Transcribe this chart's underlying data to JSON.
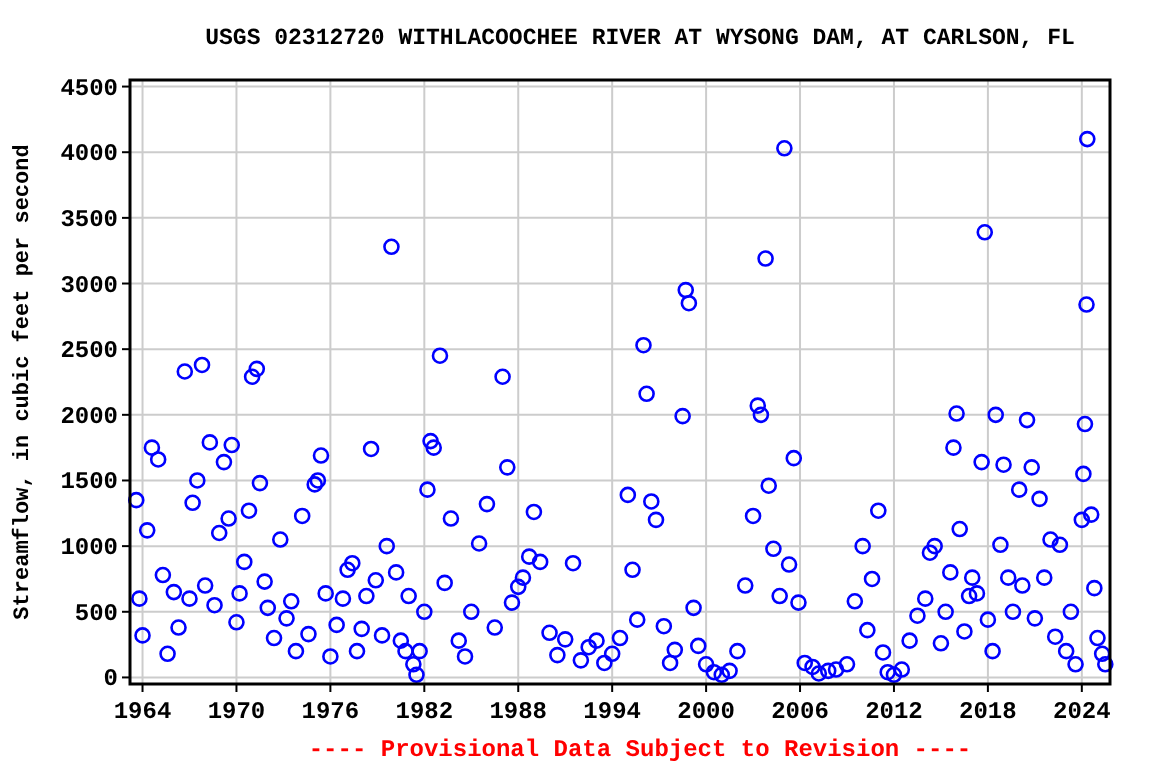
{
  "chart_data": {
    "type": "scatter",
    "title": "USGS 02312720 WITHLACOOCHEE RIVER AT WYSONG DAM, AT CARLSON, FL",
    "ylabel": "Streamflow, in cubic feet per second",
    "annotations": [
      "---- Provisional Data Subject to Revision ----"
    ],
    "xlim": [
      1963.2,
      2025.8
    ],
    "xticks": [
      1964,
      1970,
      1976,
      1982,
      1988,
      1994,
      2000,
      2006,
      2012,
      2018,
      2024
    ],
    "ylim": [
      -50,
      4550
    ],
    "yticks": [
      0,
      500,
      1000,
      1500,
      2000,
      2500,
      3000,
      3500,
      4000,
      4500
    ],
    "grid": true,
    "marker": "circle",
    "series": [
      {
        "color": "#0000ff",
        "x": [
          1963.6,
          1963.8,
          1964.0,
          1964.3,
          1964.6,
          1965.0,
          1965.3,
          1965.6,
          1966.0,
          1966.3,
          1966.7,
          1967.0,
          1967.2,
          1967.5,
          1967.8,
          1968.0,
          1968.3,
          1968.6,
          1968.9,
          1969.2,
          1969.5,
          1969.7,
          1970.0,
          1970.2,
          1970.5,
          1970.8,
          1971.0,
          1971.3,
          1971.5,
          1971.8,
          1972.0,
          1972.4,
          1972.8,
          1973.2,
          1973.5,
          1973.8,
          1974.2,
          1974.6,
          1975.0,
          1975.2,
          1975.4,
          1975.7,
          1976.0,
          1976.4,
          1976.8,
          1977.1,
          1977.4,
          1977.7,
          1978.0,
          1978.3,
          1978.6,
          1978.9,
          1979.3,
          1979.6,
          1979.9,
          1980.2,
          1980.5,
          1980.8,
          1981.0,
          1981.3,
          1981.5,
          1981.7,
          1982.0,
          1982.2,
          1982.4,
          1982.6,
          1983.0,
          1983.3,
          1983.7,
          1984.2,
          1984.6,
          1985.0,
          1985.5,
          1986.0,
          1986.5,
          1987.0,
          1987.3,
          1987.6,
          1988.0,
          1988.3,
          1988.7,
          1989.0,
          1989.4,
          1990.0,
          1990.5,
          1991.0,
          1991.5,
          1992.0,
          1992.5,
          1993.0,
          1993.5,
          1994.0,
          1994.5,
          1995.0,
          1995.3,
          1995.6,
          1996.0,
          1996.2,
          1996.5,
          1996.8,
          1997.3,
          1997.7,
          1998.0,
          1998.5,
          1998.7,
          1998.9,
          1999.2,
          1999.5,
          2000.0,
          2000.5,
          2001.0,
          2001.5,
          2002.0,
          2002.5,
          2003.0,
          2003.3,
          2003.5,
          2003.8,
          2004.0,
          2004.3,
          2004.7,
          2005.0,
          2005.3,
          2005.6,
          2005.9,
          2006.3,
          2006.8,
          2007.2,
          2007.8,
          2008.3,
          2009.0,
          2009.5,
          2010.0,
          2010.3,
          2010.6,
          2011.0,
          2011.3,
          2011.6,
          2012.0,
          2012.5,
          2013.0,
          2013.5,
          2014.0,
          2014.3,
          2014.6,
          2015.0,
          2015.3,
          2015.6,
          2015.8,
          2016.0,
          2016.2,
          2016.5,
          2016.8,
          2017.0,
          2017.3,
          2017.6,
          2017.8,
          2018.0,
          2018.3,
          2018.5,
          2018.8,
          2019.0,
          2019.3,
          2019.6,
          2020.0,
          2020.2,
          2020.5,
          2020.8,
          2021.0,
          2021.3,
          2021.6,
          2022.0,
          2022.3,
          2022.6,
          2023.0,
          2023.3,
          2023.6,
          2024.0,
          2024.1,
          2024.2,
          2024.3,
          2024.35,
          2024.6,
          2024.8,
          2025.0,
          2025.3,
          2025.5
        ],
        "values": [
          1350,
          600,
          320,
          1120,
          1750,
          1660,
          780,
          180,
          650,
          380,
          2330,
          600,
          1330,
          1500,
          2380,
          700,
          1790,
          550,
          1100,
          1640,
          1210,
          1770,
          420,
          640,
          880,
          1270,
          2290,
          2350,
          1480,
          730,
          530,
          300,
          1050,
          450,
          580,
          200,
          1230,
          330,
          1470,
          1500,
          1690,
          640,
          160,
          400,
          600,
          820,
          870,
          200,
          370,
          620,
          1740,
          740,
          320,
          1000,
          3280,
          800,
          280,
          200,
          620,
          100,
          20,
          200,
          500,
          1430,
          1800,
          1750,
          2450,
          720,
          1210,
          280,
          160,
          500,
          1020,
          1320,
          380,
          2290,
          1600,
          570,
          690,
          760,
          920,
          1260,
          880,
          340,
          170,
          290,
          870,
          130,
          230,
          280,
          110,
          180,
          300,
          1390,
          820,
          440,
          2530,
          2160,
          1340,
          1200,
          390,
          110,
          210,
          1990,
          2950,
          2850,
          530,
          240,
          100,
          40,
          20,
          50,
          200,
          700,
          1230,
          2070,
          2000,
          3190,
          1460,
          980,
          620,
          4030,
          860,
          1670,
          570,
          110,
          80,
          30,
          50,
          60,
          100,
          580,
          1000,
          360,
          750,
          1270,
          190,
          40,
          20,
          60,
          280,
          470,
          600,
          950,
          1000,
          260,
          500,
          800,
          1750,
          2010,
          1130,
          350,
          620,
          760,
          640,
          1640,
          3390,
          440,
          200,
          2000,
          1010,
          1620,
          760,
          500,
          1430,
          700,
          1960,
          1600,
          450,
          1360,
          760,
          1050,
          310,
          1010,
          200,
          500,
          100,
          1200,
          1550,
          1930,
          2840,
          4100,
          1240,
          680,
          300,
          180,
          100
        ]
      }
    ]
  }
}
